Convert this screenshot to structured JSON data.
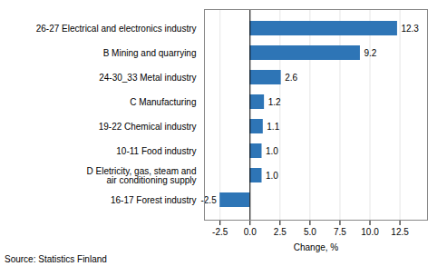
{
  "chart_data": {
    "type": "bar",
    "orientation": "horizontal",
    "categories": [
      "16-17 Forest industry",
      "D Eletricity, gas, steam and\nair conditioning supply",
      "10-11 Food industry",
      "19-22 Chemical industry",
      "C Manufacturing",
      "24-30_33 Metal industry",
      "B Mining and quarrying",
      "26-27 Electrical and electronics industry"
    ],
    "values": [
      -2.5,
      1.0,
      1.0,
      1.1,
      1.2,
      2.6,
      9.2,
      12.3
    ],
    "value_labels": [
      "-2.5",
      "1.0",
      "1.0",
      "1.1",
      "1.2",
      "2.6",
      "9.2",
      "12.3"
    ],
    "data_labels": true,
    "color": "#2E75B6",
    "xlabel": "Change, %",
    "annotations": [
      "Source: Statistics Finland"
    ],
    "xlim": [
      -3.8,
      14.8
    ],
    "xticks": [
      -2.5,
      {
        "value": 0.0,
        "label": "0.0"
      },
      2.5,
      {
        "value": 5.0,
        "label": "5.0"
      },
      7.5,
      {
        "value": 10.0,
        "label": "10.0"
      },
      12.5
    ],
    "grid": true
  }
}
